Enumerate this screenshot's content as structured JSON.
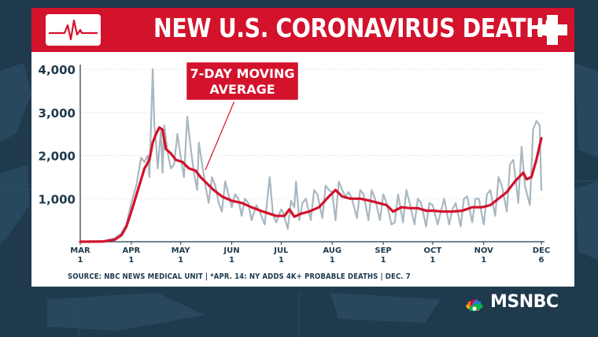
{
  "header": {
    "title": "NEW U.S. CORONAVIRUS DEATHS",
    "left_icon": "heartbeat-icon",
    "right_icon": "medical-cross-icon"
  },
  "colors": {
    "banner": "#d3122b",
    "background": "#1f3a4d",
    "daily_line": "#a9b7c0",
    "average_line": "#d3122b"
  },
  "chart_data": {
    "type": "line",
    "title": "NEW U.S. CORONAVIRUS DEATHS",
    "ylim": [
      0,
      4000
    ],
    "yticks": [
      1000,
      2000,
      3000,
      4000
    ],
    "ytick_labels": [
      "1,000",
      "2,000",
      "3,000",
      "4,000"
    ],
    "xticks": [
      {
        "month": "MAR",
        "day": "1",
        "date": "2020-03-01"
      },
      {
        "month": "APR",
        "day": "1",
        "date": "2020-04-01"
      },
      {
        "month": "MAY",
        "day": "1",
        "date": "2020-05-01"
      },
      {
        "month": "JUN",
        "day": "1",
        "date": "2020-06-01"
      },
      {
        "month": "JUL",
        "day": "1",
        "date": "2020-07-01"
      },
      {
        "month": "AUG",
        "day": "1",
        "date": "2020-08-01"
      },
      {
        "month": "SEP",
        "day": "1",
        "date": "2020-09-01"
      },
      {
        "month": "OCT",
        "day": "1",
        "date": "2020-10-01"
      },
      {
        "month": "NOV",
        "day": "1",
        "date": "2020-11-01"
      },
      {
        "month": "DEC",
        "day": "6",
        "date": "2020-12-06"
      }
    ],
    "grid": "horizontal",
    "annotation": "7-DAY MOVING AVERAGE",
    "series": [
      {
        "role": "daily",
        "points": [
          [
            "2020-03-01",
            0
          ],
          [
            "2020-03-08",
            5
          ],
          [
            "2020-03-15",
            15
          ],
          [
            "2020-03-22",
            80
          ],
          [
            "2020-03-26",
            200
          ],
          [
            "2020-03-29",
            400
          ],
          [
            "2020-04-01",
            900
          ],
          [
            "2020-04-04",
            1300
          ],
          [
            "2020-04-07",
            1950
          ],
          [
            "2020-04-09",
            1850
          ],
          [
            "2020-04-11",
            2000
          ],
          [
            "2020-04-12",
            1500
          ],
          [
            "2020-04-14",
            4000
          ],
          [
            "2020-04-15",
            2700
          ],
          [
            "2020-04-16",
            2300
          ],
          [
            "2020-04-17",
            1700
          ],
          [
            "2020-04-19",
            2600
          ],
          [
            "2020-04-20",
            1600
          ],
          [
            "2020-04-21",
            2700
          ],
          [
            "2020-04-23",
            2100
          ],
          [
            "2020-04-25",
            1700
          ],
          [
            "2020-04-27",
            1800
          ],
          [
            "2020-04-29",
            2500
          ],
          [
            "2020-05-01",
            1950
          ],
          [
            "2020-05-03",
            1500
          ],
          [
            "2020-05-05",
            2900
          ],
          [
            "2020-05-07",
            2200
          ],
          [
            "2020-05-09",
            1600
          ],
          [
            "2020-05-11",
            1200
          ],
          [
            "2020-05-12",
            2300
          ],
          [
            "2020-05-14",
            1800
          ],
          [
            "2020-05-16",
            1300
          ],
          [
            "2020-05-18",
            900
          ],
          [
            "2020-05-20",
            1500
          ],
          [
            "2020-05-22",
            1300
          ],
          [
            "2020-05-24",
            900
          ],
          [
            "2020-05-26",
            700
          ],
          [
            "2020-05-28",
            1400
          ],
          [
            "2020-05-30",
            1100
          ],
          [
            "2020-06-01",
            800
          ],
          [
            "2020-06-03",
            1100
          ],
          [
            "2020-06-05",
            1000
          ],
          [
            "2020-06-07",
            600
          ],
          [
            "2020-06-09",
            1000
          ],
          [
            "2020-06-11",
            900
          ],
          [
            "2020-06-13",
            500
          ],
          [
            "2020-06-16",
            850
          ],
          [
            "2020-06-18",
            700
          ],
          [
            "2020-06-21",
            400
          ],
          [
            "2020-06-24",
            1500
          ],
          [
            "2020-06-26",
            650
          ],
          [
            "2020-06-28",
            450
          ],
          [
            "2020-07-01",
            750
          ],
          [
            "2020-07-02",
            700
          ],
          [
            "2020-07-05",
            300
          ],
          [
            "2020-07-07",
            950
          ],
          [
            "2020-07-09",
            800
          ],
          [
            "2020-07-10",
            1400
          ],
          [
            "2020-07-12",
            500
          ],
          [
            "2020-07-14",
            900
          ],
          [
            "2020-07-16",
            1000
          ],
          [
            "2020-07-19",
            500
          ],
          [
            "2020-07-21",
            1200
          ],
          [
            "2020-07-23",
            1100
          ],
          [
            "2020-07-26",
            550
          ],
          [
            "2020-07-28",
            1300
          ],
          [
            "2020-07-30",
            1200
          ],
          [
            "2020-08-01",
            1150
          ],
          [
            "2020-08-03",
            500
          ],
          [
            "2020-08-05",
            1400
          ],
          [
            "2020-08-07",
            1200
          ],
          [
            "2020-08-09",
            1050
          ],
          [
            "2020-08-11",
            1150
          ],
          [
            "2020-08-13",
            1000
          ],
          [
            "2020-08-16",
            550
          ],
          [
            "2020-08-18",
            1200
          ],
          [
            "2020-08-20",
            1100
          ],
          [
            "2020-08-23",
            500
          ],
          [
            "2020-08-25",
            1200
          ],
          [
            "2020-08-27",
            1000
          ],
          [
            "2020-08-30",
            500
          ],
          [
            "2020-09-01",
            1100
          ],
          [
            "2020-09-03",
            900
          ],
          [
            "2020-09-06",
            400
          ],
          [
            "2020-09-08",
            450
          ],
          [
            "2020-09-10",
            1100
          ],
          [
            "2020-09-13",
            450
          ],
          [
            "2020-09-15",
            1200
          ],
          [
            "2020-09-17",
            900
          ],
          [
            "2020-09-20",
            400
          ],
          [
            "2020-09-22",
            1000
          ],
          [
            "2020-09-24",
            900
          ],
          [
            "2020-09-27",
            350
          ],
          [
            "2020-09-29",
            900
          ],
          [
            "2020-10-01",
            850
          ],
          [
            "2020-10-04",
            400
          ],
          [
            "2020-10-06",
            700
          ],
          [
            "2020-10-08",
            1000
          ],
          [
            "2020-10-11",
            400
          ],
          [
            "2020-10-13",
            750
          ],
          [
            "2020-10-15",
            900
          ],
          [
            "2020-10-18",
            350
          ],
          [
            "2020-10-20",
            1000
          ],
          [
            "2020-10-22",
            1050
          ],
          [
            "2020-10-25",
            450
          ],
          [
            "2020-10-27",
            1000
          ],
          [
            "2020-10-29",
            1000
          ],
          [
            "2020-11-01",
            400
          ],
          [
            "2020-11-03",
            1100
          ],
          [
            "2020-11-05",
            1200
          ],
          [
            "2020-11-08",
            600
          ],
          [
            "2020-11-10",
            1500
          ],
          [
            "2020-11-12",
            1300
          ],
          [
            "2020-11-15",
            700
          ],
          [
            "2020-11-17",
            1800
          ],
          [
            "2020-11-19",
            1900
          ],
          [
            "2020-11-22",
            900
          ],
          [
            "2020-11-24",
            2200
          ],
          [
            "2020-11-26",
            1300
          ],
          [
            "2020-11-29",
            850
          ],
          [
            "2020-12-01",
            2600
          ],
          [
            "2020-12-03",
            2800
          ],
          [
            "2020-12-05",
            2700
          ],
          [
            "2020-12-06",
            1200
          ]
        ]
      },
      {
        "role": "7-day moving average",
        "points": [
          [
            "2020-03-01",
            0
          ],
          [
            "2020-03-15",
            5
          ],
          [
            "2020-03-22",
            50
          ],
          [
            "2020-03-26",
            150
          ],
          [
            "2020-03-29",
            350
          ],
          [
            "2020-04-01",
            700
          ],
          [
            "2020-04-05",
            1200
          ],
          [
            "2020-04-09",
            1700
          ],
          [
            "2020-04-12",
            1900
          ],
          [
            "2020-04-14",
            2300
          ],
          [
            "2020-04-16",
            2500
          ],
          [
            "2020-04-18",
            2650
          ],
          [
            "2020-04-20",
            2600
          ],
          [
            "2020-04-22",
            2150
          ],
          [
            "2020-04-25",
            2050
          ],
          [
            "2020-04-28",
            1900
          ],
          [
            "2020-05-02",
            1850
          ],
          [
            "2020-05-06",
            1700
          ],
          [
            "2020-05-10",
            1650
          ],
          [
            "2020-05-13",
            1500
          ],
          [
            "2020-05-17",
            1350
          ],
          [
            "2020-05-21",
            1200
          ],
          [
            "2020-05-26",
            1050
          ],
          [
            "2020-06-01",
            950
          ],
          [
            "2020-06-07",
            900
          ],
          [
            "2020-06-13",
            800
          ],
          [
            "2020-06-20",
            700
          ],
          [
            "2020-06-28",
            600
          ],
          [
            "2020-07-03",
            600
          ],
          [
            "2020-07-06",
            750
          ],
          [
            "2020-07-09",
            580
          ],
          [
            "2020-07-13",
            650
          ],
          [
            "2020-07-18",
            700
          ],
          [
            "2020-07-24",
            800
          ],
          [
            "2020-07-30",
            1050
          ],
          [
            "2020-08-03",
            1200
          ],
          [
            "2020-08-07",
            1050
          ],
          [
            "2020-08-12",
            1000
          ],
          [
            "2020-08-18",
            1000
          ],
          [
            "2020-08-24",
            950
          ],
          [
            "2020-08-29",
            900
          ],
          [
            "2020-09-03",
            850
          ],
          [
            "2020-09-07",
            700
          ],
          [
            "2020-09-12",
            800
          ],
          [
            "2020-09-17",
            780
          ],
          [
            "2020-09-22",
            780
          ],
          [
            "2020-09-27",
            720
          ],
          [
            "2020-10-01",
            720
          ],
          [
            "2020-10-07",
            700
          ],
          [
            "2020-10-13",
            700
          ],
          [
            "2020-10-19",
            720
          ],
          [
            "2020-10-25",
            800
          ],
          [
            "2020-10-31",
            800
          ],
          [
            "2020-11-05",
            850
          ],
          [
            "2020-11-10",
            1000
          ],
          [
            "2020-11-15",
            1150
          ],
          [
            "2020-11-20",
            1400
          ],
          [
            "2020-11-25",
            1600
          ],
          [
            "2020-11-27",
            1450
          ],
          [
            "2020-11-30",
            1500
          ],
          [
            "2020-12-03",
            1900
          ],
          [
            "2020-12-06",
            2400
          ]
        ]
      }
    ]
  },
  "footer": {
    "source": "SOURCE: NBC NEWS MEDICAL UNIT | *APR. 14: NY ADDS 4K+ PROBABLE DEATHS | DEC. 7",
    "logo_text": "MSNBC",
    "logo_icon": "peacock-icon"
  }
}
